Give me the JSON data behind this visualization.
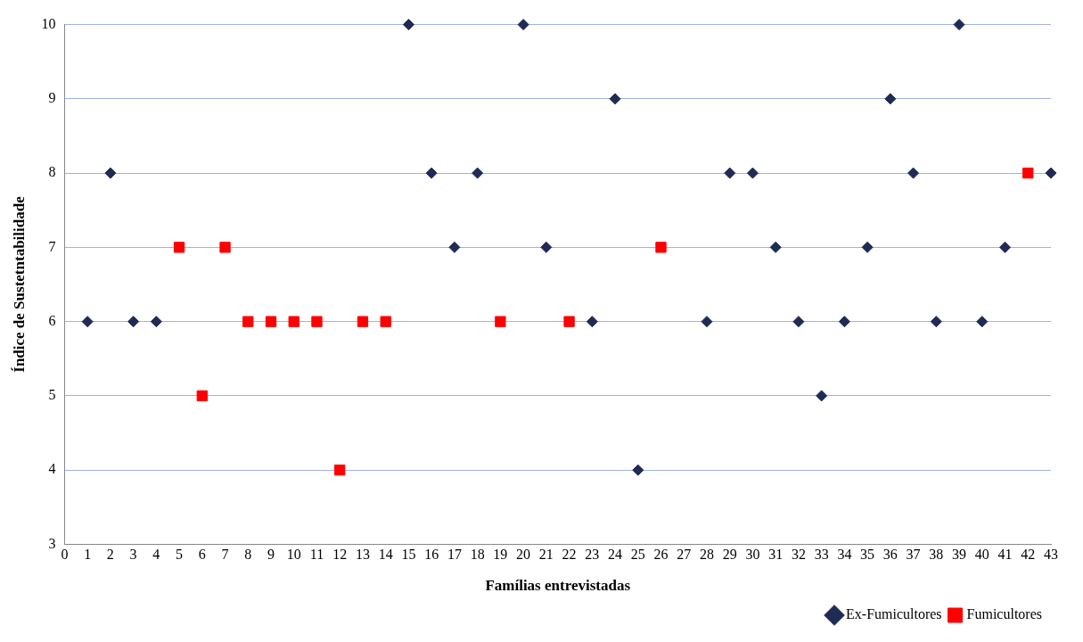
{
  "chart_data": {
    "type": "scatter",
    "xlabel": "Famílias entrevistadas",
    "ylabel": "Índice de Sustetntabilidade",
    "xlim": [
      0,
      43
    ],
    "xticks": [
      0,
      1,
      2,
      3,
      4,
      5,
      6,
      7,
      8,
      9,
      10,
      11,
      12,
      13,
      14,
      15,
      16,
      17,
      18,
      19,
      20,
      21,
      22,
      23,
      24,
      25,
      26,
      27,
      28,
      29,
      30,
      31,
      32,
      33,
      34,
      35,
      36,
      37,
      38,
      39,
      40,
      41,
      42,
      43
    ],
    "ylim": [
      3,
      10
    ],
    "yticks": [
      3,
      4,
      5,
      6,
      7,
      8,
      9,
      10
    ],
    "grid": "y",
    "legend": "bottom right",
    "series": [
      {
        "name": "Ex-Fumicultores",
        "color": "#1f2a55",
        "marker": "diamond",
        "x": [
          1,
          2,
          3,
          4,
          15,
          16,
          17,
          18,
          20,
          21,
          23,
          24,
          25,
          28,
          29,
          30,
          31,
          32,
          33,
          34,
          35,
          36,
          37,
          38,
          39,
          40,
          41,
          43
        ],
        "values": [
          6,
          8,
          6,
          6,
          10,
          8,
          7,
          8,
          10,
          7,
          6,
          9,
          4,
          6,
          8,
          8,
          7,
          6,
          5,
          6,
          7,
          9,
          8,
          6,
          10,
          6,
          7,
          8
        ]
      },
      {
        "name": "Fumicultores",
        "color": "#ff0000",
        "marker": "square",
        "x": [
          5,
          6,
          7,
          8,
          9,
          10,
          11,
          12,
          13,
          14,
          19,
          22,
          26,
          42
        ],
        "values": [
          7,
          5,
          7,
          6,
          6,
          6,
          6,
          4,
          6,
          6,
          6,
          6,
          7,
          8
        ]
      }
    ]
  }
}
